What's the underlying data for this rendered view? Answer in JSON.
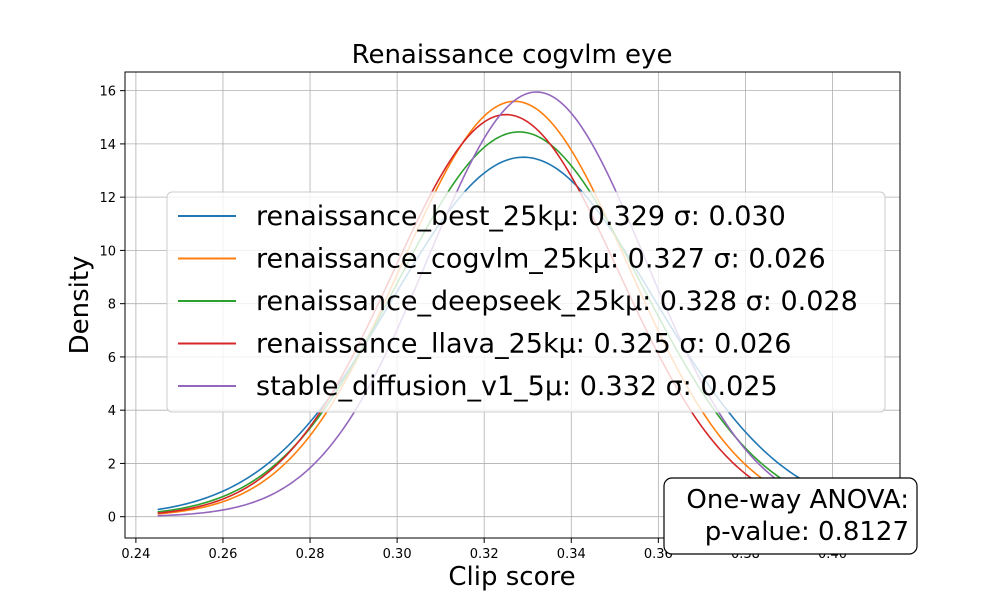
{
  "chart_data": {
    "type": "line",
    "title": "Renaissance cogvlm eye",
    "xlabel": "Clip score",
    "ylabel": "Density",
    "xlim": [
      0.2375,
      0.4155
    ],
    "ylim": [
      -0.8,
      16.7
    ],
    "xticks": [
      0.24,
      0.26,
      0.28,
      0.3,
      0.32,
      0.34,
      0.36,
      0.38,
      0.4
    ],
    "xtick_labels": [
      "0.24",
      "0.26",
      "0.28",
      "0.30",
      "0.32",
      "0.34",
      "0.36",
      "0.38",
      "0.40"
    ],
    "yticks": [
      0,
      2,
      4,
      6,
      8,
      10,
      12,
      14,
      16
    ],
    "ytick_labels": [
      "0",
      "2",
      "4",
      "6",
      "8",
      "10",
      "12",
      "14",
      "16"
    ],
    "x_range": [
      0.245,
      0.409
    ],
    "grid": true,
    "legend_position": "center",
    "series": [
      {
        "name": "renaissance_best_25kμ: 0.329 σ: 0.030",
        "mean": 0.329,
        "std": 0.03,
        "peak": 13.5,
        "color": "#1f77b4"
      },
      {
        "name": "renaissance_cogvlm_25kμ: 0.327 σ: 0.026",
        "mean": 0.327,
        "std": 0.026,
        "peak": 15.6,
        "color": "#ff7f0e"
      },
      {
        "name": "renaissance_deepseek_25kμ: 0.328 σ: 0.028",
        "mean": 0.328,
        "std": 0.028,
        "peak": 14.45,
        "color": "#2ca02c"
      },
      {
        "name": "renaissance_llava_25kμ: 0.325 σ: 0.026",
        "mean": 0.325,
        "std": 0.026,
        "peak": 15.1,
        "color": "#d62728"
      },
      {
        "name": "stable_diffusion_v1_5μ: 0.332 σ: 0.025",
        "mean": 0.332,
        "std": 0.025,
        "peak": 15.95,
        "color": "#9467bd"
      }
    ],
    "annotation": {
      "line1": "One-way ANOVA:",
      "line2": "p-value: 0.8127"
    }
  }
}
